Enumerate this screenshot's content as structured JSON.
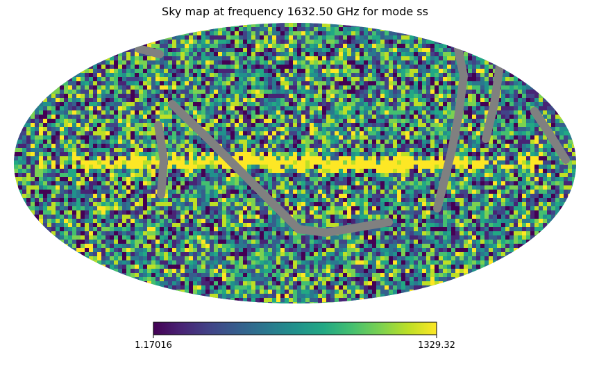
{
  "chart_data": {
    "type": "heatmap",
    "projection": "mollweide",
    "title": "Sky map at frequency 1632.50 GHz for mode ss",
    "colormap": "viridis",
    "colorbar": {
      "min_label": "1.17016",
      "max_label": "1329.32",
      "range": [
        1.17016,
        1329.32
      ],
      "orientation": "horizontal",
      "placement": "bottom"
    },
    "masked_color": "#808080",
    "features": [
      "bright yellow galactic plane band across the center",
      "gray masked stripes (unobserved scan paths)"
    ]
  }
}
